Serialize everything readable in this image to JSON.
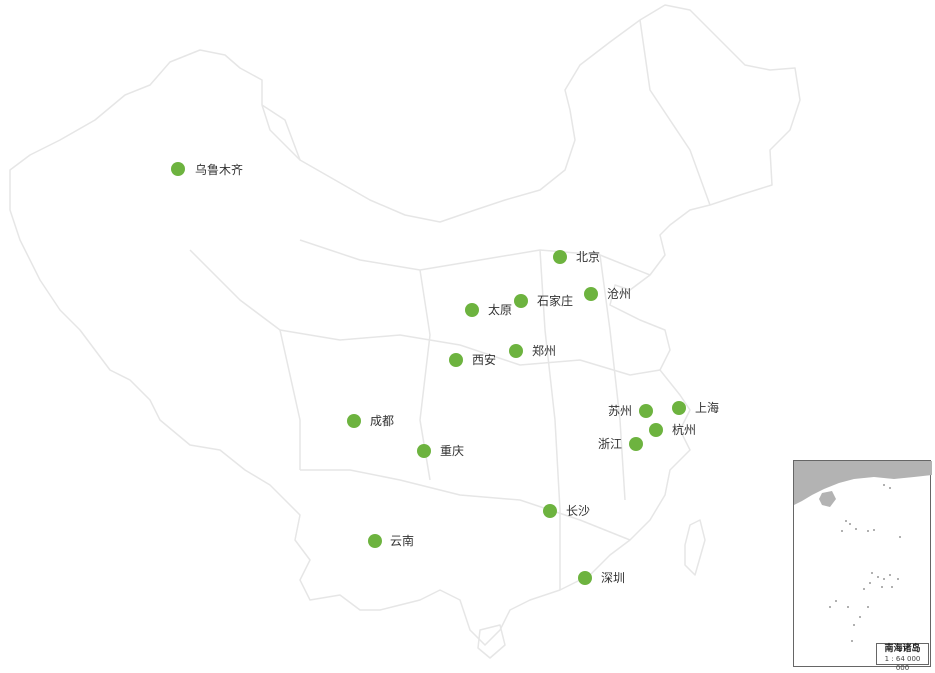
{
  "colors": {
    "marker": "#6db33f",
    "label": "#333333",
    "outline": "#e6e6e6",
    "inset_land": "#b3b3b3"
  },
  "cities": [
    {
      "name": "乌鲁木齐"
    },
    {
      "name": "北京"
    },
    {
      "name": "石家庄"
    },
    {
      "name": "沧州"
    },
    {
      "name": "太原"
    },
    {
      "name": "郑州"
    },
    {
      "name": "西安"
    },
    {
      "name": "苏州"
    },
    {
      "name": "上海"
    },
    {
      "name": "杭州"
    },
    {
      "name": "浙江"
    },
    {
      "name": "成都"
    },
    {
      "name": "重庆"
    },
    {
      "name": "长沙"
    },
    {
      "name": "云南"
    },
    {
      "name": "深圳"
    }
  ],
  "inset": {
    "title": "南海诸岛",
    "scale": "1 : 64 000 000"
  }
}
